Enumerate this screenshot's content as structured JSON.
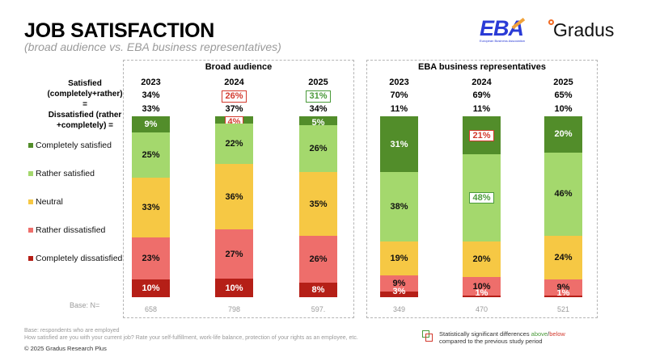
{
  "header": {
    "title": "JOB SATISFACTION",
    "subtitle": "(broad audience vs. EBA business representatives)"
  },
  "logos": {
    "eba": {
      "letters": "EBA",
      "caption": "European Business Association"
    },
    "gradus": {
      "name": "Gradus"
    }
  },
  "summary_labels": {
    "satisfied": "Satisfied (completely+rather) =",
    "dissatisfied": "Dissatisfied (rather +completely) ="
  },
  "legend": [
    {
      "label": "Completely satisfied",
      "color": "#528d2a"
    },
    {
      "label": "Rather satisfied",
      "color": "#a4d86d"
    },
    {
      "label": "Neutral",
      "color": "#f6c844"
    },
    {
      "label": "Rather dissatisfied",
      "color": "#ee6e6b"
    },
    {
      "label": "Completely dissatisfied",
      "color": "#b51f17"
    }
  ],
  "base_label": "Base: N=",
  "chart_data": {
    "type": "bar",
    "stacked": true,
    "title": "JOB SATISFACTION",
    "subtitle": "(broad audience vs. EBA business representatives)",
    "ylim": [
      0,
      100
    ],
    "unit": "%",
    "categories_order_top_to_bottom": [
      "Completely satisfied",
      "Rather satisfied",
      "Neutral",
      "Rather dissatisfied",
      "Completely dissatisfied"
    ],
    "groups": [
      {
        "name": "Broad audience",
        "columns": [
          {
            "year": "2023",
            "satisfied": "34%",
            "satisfied_flag": "",
            "dissatisfied": "33%",
            "base": "658",
            "values": [
              9,
              25,
              33,
              23,
              10
            ],
            "labels": [
              "9%",
              "25%",
              "33%",
              "23%",
              "10%"
            ],
            "flags": [
              "",
              "",
              "",
              "",
              ""
            ]
          },
          {
            "year": "2024",
            "satisfied": "26%",
            "satisfied_flag": "below",
            "dissatisfied": "37%",
            "base": "798",
            "values": [
              4,
              22,
              36,
              27,
              10
            ],
            "labels": [
              "4%",
              "22%",
              "36%",
              "27%",
              "10%"
            ],
            "flags": [
              "below",
              "",
              "",
              "",
              ""
            ]
          },
          {
            "year": "2025",
            "satisfied": "31%",
            "satisfied_flag": "above",
            "dissatisfied": "34%",
            "base": "597.",
            "values": [
              5,
              26,
              35,
              26,
              8
            ],
            "labels": [
              "5%",
              "26%",
              "35%",
              "26%",
              "8%"
            ],
            "flags": [
              "",
              "",
              "",
              "",
              ""
            ]
          }
        ]
      },
      {
        "name": "EBA business representatives",
        "columns": [
          {
            "year": "2023",
            "satisfied": "70%",
            "satisfied_flag": "",
            "dissatisfied": "11%",
            "base": "349",
            "values": [
              31,
              38,
              19,
              9,
              3
            ],
            "labels": [
              "31%",
              "38%",
              "19%",
              "9%",
              "3%"
            ],
            "flags": [
              "",
              "",
              "",
              "",
              ""
            ]
          },
          {
            "year": "2024",
            "satisfied": "69%",
            "satisfied_flag": "",
            "dissatisfied": "11%",
            "base": "470",
            "values": [
              21,
              48,
              20,
              10,
              1
            ],
            "labels": [
              "21%",
              "48%",
              "20%",
              "10%",
              "1%"
            ],
            "flags": [
              "below",
              "above",
              "",
              "",
              ""
            ]
          },
          {
            "year": "2025",
            "satisfied": "65%",
            "satisfied_flag": "",
            "dissatisfied": "10%",
            "base": "521",
            "values": [
              20,
              46,
              24,
              9,
              1
            ],
            "labels": [
              "20%",
              "46%",
              "24%",
              "9%",
              "1%"
            ],
            "flags": [
              "",
              "",
              "",
              "",
              ""
            ]
          }
        ]
      }
    ],
    "colors": {
      "above": "#4a9a3a",
      "below": "#d33a2e"
    }
  },
  "footer": {
    "base_note": "Base: respondents who are employed",
    "question": "How satisfied are you with your current job? Rate your self-fulfillment, work-life balance, protection of your rights as an employee, etc.",
    "copyright": "© 2025 Gradus Research Plus",
    "significance_prefix": "Statistically significant differences ",
    "significance_above": "above",
    "significance_slash": "/",
    "significance_below": "below",
    "significance_suffix": "compared to the previous study period"
  }
}
